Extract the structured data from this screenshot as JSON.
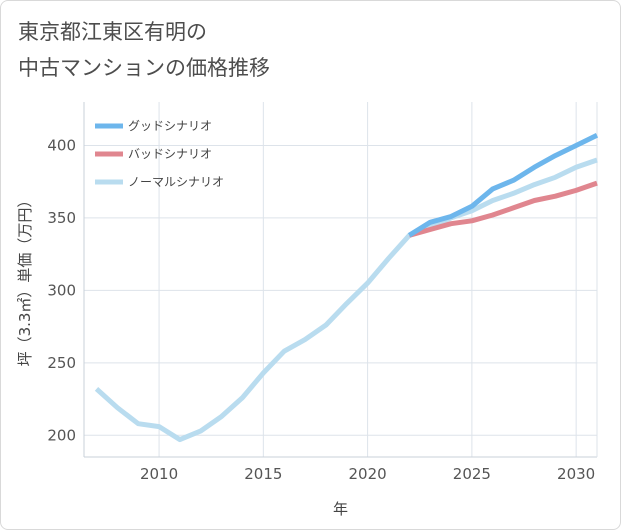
{
  "title_lines": [
    "東京都江東区有明の",
    "中古マンションの価格推移"
  ],
  "chart_data": {
    "type": "line",
    "title": "東京都江東区有明の中古マンションの価格推移",
    "xlabel": "年",
    "ylabel": "坪（3.3㎡）単価（万円）",
    "xlim": [
      2006.4,
      2031
    ],
    "ylim": [
      185,
      430
    ],
    "x_ticks": [
      2010,
      2015,
      2020,
      2025,
      2030
    ],
    "y_ticks": [
      200,
      250,
      300,
      350,
      400
    ],
    "grid": true,
    "legend_position": "top-left",
    "series": [
      {
        "name": "グッドシナリオ",
        "color": "#6db6ec",
        "x": [
          2022,
          2023,
          2024,
          2025,
          2026,
          2027,
          2028,
          2029,
          2030,
          2031
        ],
        "y": [
          338,
          347,
          351,
          358,
          370,
          376,
          385,
          393,
          400,
          407
        ]
      },
      {
        "name": "バッドシナリオ",
        "color": "#e0868f",
        "x": [
          2022,
          2023,
          2024,
          2025,
          2026,
          2027,
          2028,
          2029,
          2030,
          2031
        ],
        "y": [
          338,
          342,
          346,
          348,
          352,
          357,
          362,
          365,
          369,
          374
        ]
      },
      {
        "name": "ノーマルシナリオ",
        "color": "#b9dcef",
        "x": [
          2007,
          2008,
          2009,
          2010,
          2011,
          2012,
          2013,
          2014,
          2015,
          2016,
          2017,
          2018,
          2019,
          2020,
          2021,
          2022,
          2023,
          2024,
          2025,
          2026,
          2027,
          2028,
          2029,
          2030,
          2031
        ],
        "y": [
          232,
          219,
          208,
          206,
          197,
          203,
          213,
          226,
          243,
          258,
          266,
          276,
          291,
          305,
          322,
          338,
          344,
          350,
          355,
          362,
          367,
          373,
          378,
          385,
          390
        ]
      }
    ]
  }
}
